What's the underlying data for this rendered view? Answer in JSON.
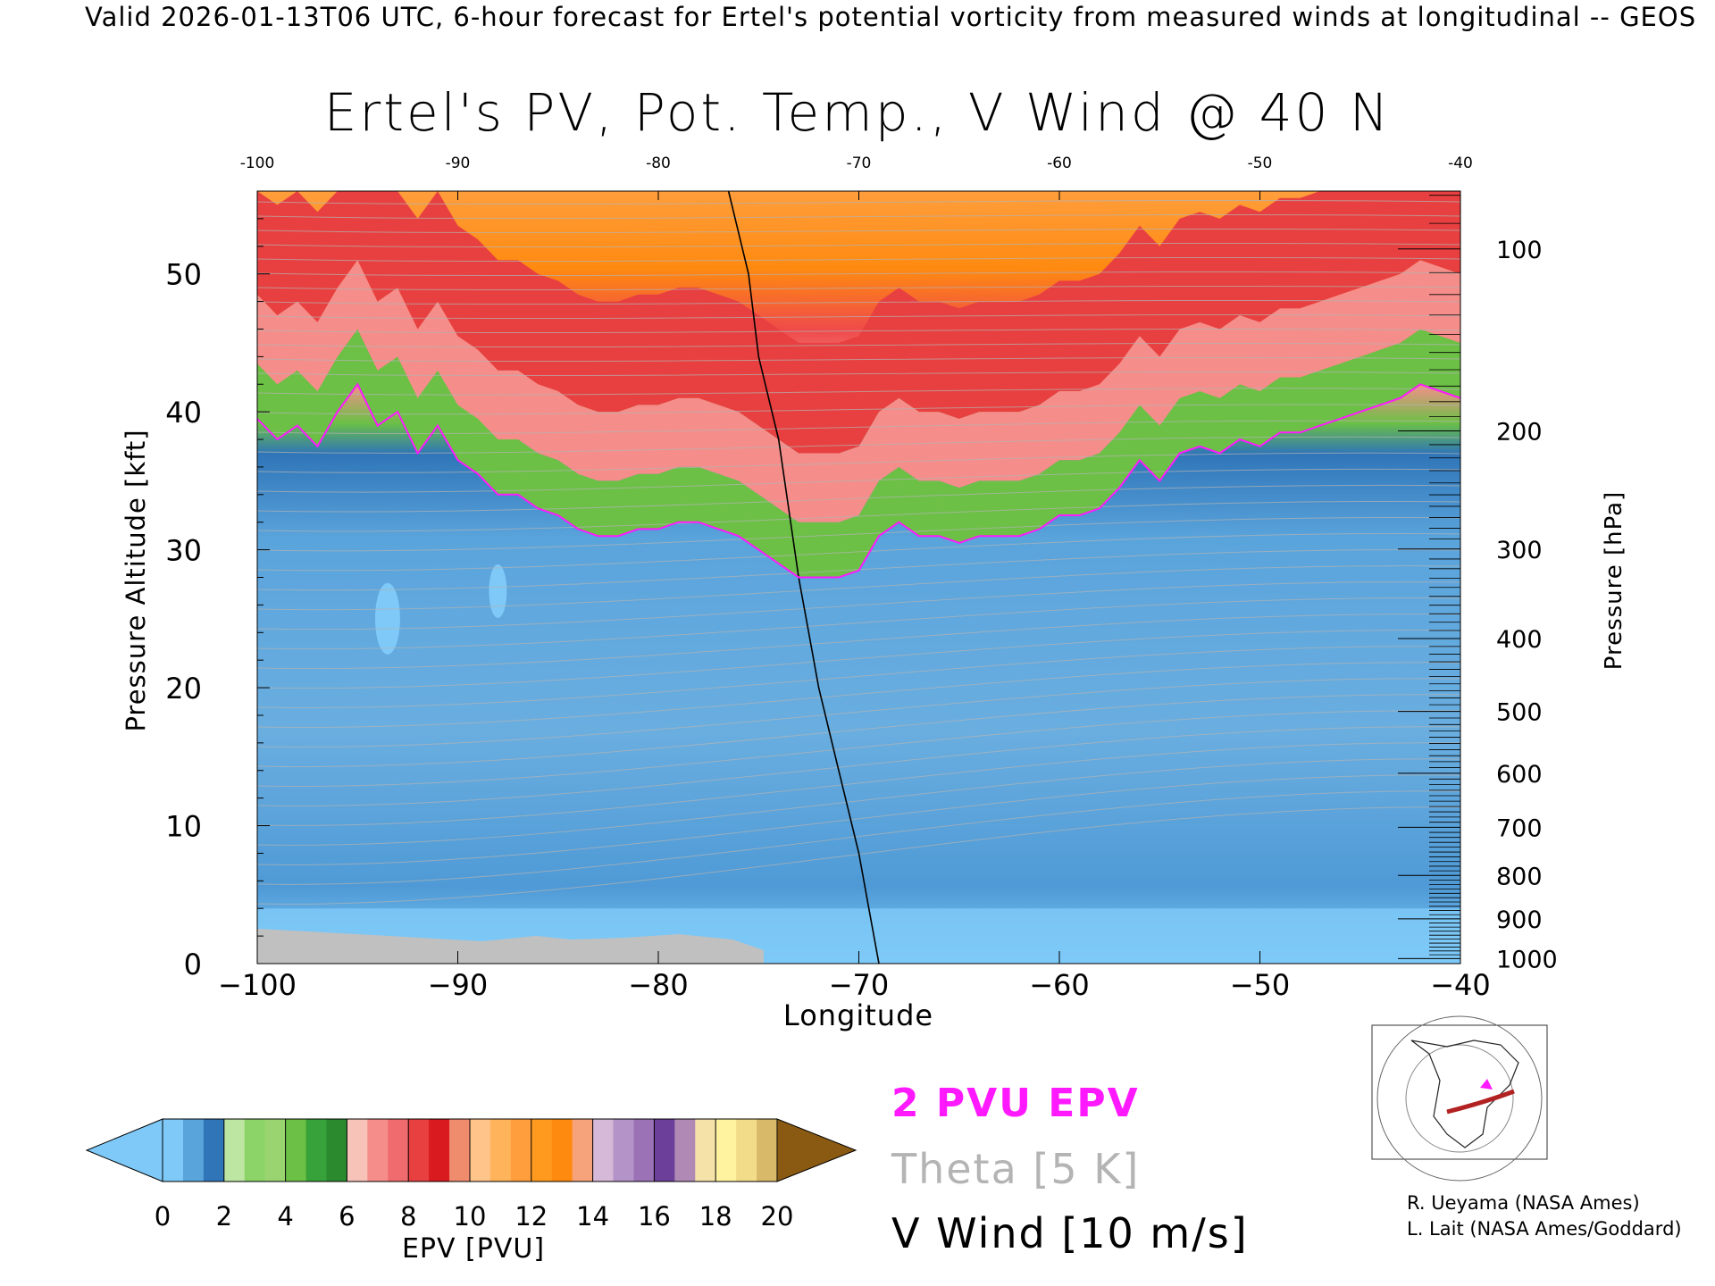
{
  "header": "Valid 2026-01-13T06 UTC, 6-hour forecast for Ertel's potential vorticity from measured winds at longitudinal -- GEOS",
  "chart_data": {
    "type": "heatmap",
    "title": "Ertel's PV, Pot. Temp., V Wind @ 40 N",
    "xlabel": "Longitude",
    "ylabel_left": "Pressure Altitude [kft]",
    "ylabel_right": "Pressure [hPa]",
    "xlim": [
      -100,
      -40
    ],
    "ylim": [
      0,
      56
    ],
    "x_ticks": [
      "−100",
      "−90",
      "−80",
      "−70",
      "−60",
      "−50",
      "−40"
    ],
    "top_ticks": [
      "-100",
      "-90",
      "-80",
      "-70",
      "-60",
      "-50",
      "-40"
    ],
    "y_ticks": [
      "0",
      "10",
      "20",
      "30",
      "40",
      "50"
    ],
    "pressure_ticks": [
      {
        "label": "100",
        "p": 100
      },
      {
        "label": "200",
        "p": 200
      },
      {
        "label": "300",
        "p": 300
      },
      {
        "label": "400",
        "p": 400
      },
      {
        "label": "500",
        "p": 500
      },
      {
        "label": "600",
        "p": 600
      },
      {
        "label": "700",
        "p": 700
      },
      {
        "label": "800",
        "p": 800
      },
      {
        "label": "900",
        "p": 900
      },
      {
        "label": "1000",
        "p": 1000
      }
    ],
    "tropopause_2pvu": {
      "lon": [
        -100,
        -99,
        -98,
        -97,
        -96,
        -95,
        -94,
        -93,
        -92,
        -91,
        -90,
        -89,
        -88,
        -87,
        -86,
        -85,
        -84,
        -83,
        -82,
        -81,
        -80,
        -79,
        -78,
        -77,
        -76,
        -75,
        -74,
        -73,
        -72,
        -71,
        -70,
        -69,
        -68,
        -67,
        -66,
        -65,
        -64,
        -63,
        -62,
        -61,
        -60,
        -59,
        -58,
        -57,
        -56,
        -55,
        -54,
        -53,
        -52,
        -51,
        -50,
        -49,
        -48,
        -47,
        -46,
        -45,
        -44,
        -43,
        -42,
        -41,
        -40
      ],
      "kft": [
        39.5,
        38,
        39,
        37.5,
        40,
        42,
        39,
        40,
        37,
        39,
        36.5,
        35.5,
        34,
        34,
        33,
        32.5,
        31.5,
        31,
        31,
        31.5,
        31.5,
        32,
        32,
        31.5,
        31,
        30,
        29,
        28,
        28,
        28,
        28.5,
        31,
        32,
        31,
        31,
        30.5,
        31,
        31,
        31,
        31.5,
        32.5,
        32.5,
        33,
        34.5,
        36.5,
        35,
        37,
        37.5,
        37,
        38,
        37.5,
        38.5,
        38.5,
        39,
        39.5,
        40,
        40.5,
        41,
        42,
        41.5,
        41
      ]
    },
    "vwind_zero_line": {
      "lon": [
        -76.5,
        -75.5,
        -75,
        -74,
        -73.5,
        -73,
        -72.5,
        -72,
        -71,
        -70,
        -69.5,
        -69
      ],
      "kft": [
        56,
        50,
        44,
        38,
        33,
        28,
        24,
        20,
        14,
        8,
        4,
        0
      ]
    },
    "colorbar": {
      "label": "EPV [PVU]",
      "ticks": [
        "0",
        "2",
        "4",
        "6",
        "8",
        "10",
        "12",
        "14",
        "16",
        "18",
        "20"
      ],
      "bins": [
        {
          "lo": 0,
          "hi": 2,
          "colors": [
            "#7ec9f7",
            "#5aa4dc",
            "#2f75b8"
          ]
        },
        {
          "lo": 2,
          "hi": 4,
          "colors": [
            "#bde6a3",
            "#8cd468",
            "#9ad470"
          ]
        },
        {
          "lo": 4,
          "hi": 6,
          "colors": [
            "#6cc046",
            "#38a23a",
            "#2b8a2e"
          ]
        },
        {
          "lo": 6,
          "hi": 8,
          "colors": [
            "#f7c3b8",
            "#f58e8a",
            "#ef6b6d"
          ]
        },
        {
          "lo": 8,
          "hi": 10,
          "colors": [
            "#e84040",
            "#d91a1e",
            "#f08c6e"
          ]
        },
        {
          "lo": 10,
          "hi": 12,
          "colors": [
            "#ffc48a",
            "#ffb35a",
            "#ff9e3c"
          ]
        },
        {
          "lo": 12,
          "hi": 14,
          "colors": [
            "#ff9a1e",
            "#ff8a10",
            "#f6a27a"
          ]
        },
        {
          "lo": 14,
          "hi": 16,
          "colors": [
            "#d6b8d8",
            "#b493c8",
            "#9b72b6"
          ]
        },
        {
          "lo": 16,
          "hi": 18,
          "colors": [
            "#6b3f9a",
            "#b08ab4",
            "#f5e2a8"
          ]
        },
        {
          "lo": 18,
          "hi": 20,
          "colors": [
            "#fff3a0",
            "#f2dc8a",
            "#d8b96a"
          ]
        }
      ],
      "under_color": "#7ec9f7",
      "over_color": "#8b5a12"
    },
    "legend": [
      {
        "label": "2 PVU EPV",
        "color": "#ff19ff"
      },
      {
        "label": "Theta [5 K]",
        "color": "#b4b4b4"
      },
      {
        "label": "V Wind [10 m/s]",
        "color": "#000000"
      }
    ]
  },
  "credits": [
    "R. Ueyama (NASA Ames)",
    "L. Lait (NASA Ames/Goddard)"
  ],
  "colors": {
    "epv_2pvu": "#ff19ff",
    "theta": "#b4b4b4",
    "vwind": "#000000",
    "terrain": "#c0c0c0"
  }
}
